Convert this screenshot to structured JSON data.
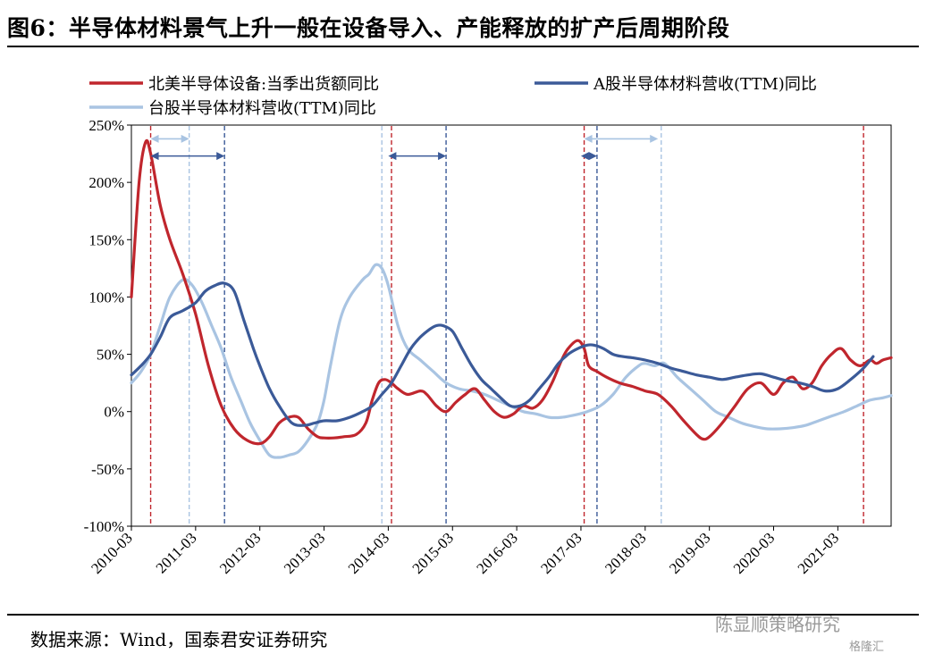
{
  "title": "图6：半导体材料景气上升一般在设备导入、产能释放的扩产后周期阶段",
  "source": "数据来源：Wind，国泰君安证券研究",
  "watermark": "陈显顺策略研究",
  "watermark_logo": "格隆汇",
  "colors": {
    "red": "#c0262d",
    "dark_blue": "#3b5a98",
    "light_blue": "#a9c4e2"
  },
  "chart_data": {
    "type": "line",
    "title": "",
    "xlabel": "",
    "ylabel": "",
    "ylim": [
      -100,
      250
    ],
    "y_ticks": [
      -100,
      -50,
      0,
      50,
      100,
      150,
      200,
      250
    ],
    "y_tick_labels": [
      "-100%",
      "-50%",
      "0%",
      "50%",
      "100%",
      "150%",
      "200%",
      "250%"
    ],
    "x_range": [
      2010.0,
      2021.83
    ],
    "x_ticks": [
      2010,
      2011,
      2012,
      2013,
      2014,
      2015,
      2016,
      2017,
      2018,
      2019,
      2020,
      2021
    ],
    "x_tick_labels": [
      "2010-03",
      "2011-03",
      "2012-03",
      "2013-03",
      "2014-03",
      "2015-03",
      "2016-03",
      "2017-03",
      "2018-03",
      "2019-03",
      "2020-03",
      "2021-03"
    ],
    "legend": [
      "北美半导体设备:当季出货额同比",
      "A股半导体材料营收(TTM)同比",
      "台股半导体材料营收(TTM)同比"
    ],
    "series": [
      {
        "name": "北美半导体设备:当季出货额同比",
        "color": "#c0262d",
        "x": [
          2010.0,
          2010.12,
          2010.22,
          2010.3,
          2010.45,
          2010.6,
          2010.8,
          2011.0,
          2011.2,
          2011.4,
          2011.6,
          2011.8,
          2012.0,
          2012.15,
          2012.3,
          2012.45,
          2012.6,
          2012.75,
          2012.9,
          2013.0,
          2013.15,
          2013.3,
          2013.5,
          2013.65,
          2013.75,
          2013.85,
          2013.95,
          2014.05,
          2014.15,
          2014.3,
          2014.5,
          2014.6,
          2014.75,
          2014.9,
          2015.05,
          2015.2,
          2015.35,
          2015.5,
          2015.65,
          2015.8,
          2015.95,
          2016.1,
          2016.25,
          2016.4,
          2016.55,
          2016.7,
          2016.8,
          2016.95,
          2017.05,
          2017.12,
          2017.25,
          2017.4,
          2017.6,
          2017.8,
          2018.0,
          2018.2,
          2018.4,
          2018.6,
          2018.8,
          2018.9,
          2019.0,
          2019.2,
          2019.4,
          2019.6,
          2019.8,
          2020.0,
          2020.15,
          2020.3,
          2020.45,
          2020.6,
          2020.75,
          2020.9,
          2021.05,
          2021.2,
          2021.35,
          2021.5,
          2021.6,
          2021.7,
          2021.83
        ],
        "y": [
          100,
          200,
          235,
          225,
          180,
          150,
          120,
          85,
          40,
          5,
          -15,
          -25,
          -28,
          -22,
          -10,
          -5,
          -5,
          -15,
          -22,
          -23,
          -23,
          -22,
          -20,
          -10,
          10,
          25,
          28,
          25,
          20,
          15,
          18,
          15,
          5,
          0,
          8,
          15,
          20,
          10,
          0,
          -5,
          -2,
          5,
          3,
          10,
          25,
          45,
          55,
          62,
          55,
          40,
          35,
          30,
          25,
          22,
          18,
          15,
          5,
          -8,
          -20,
          -24,
          -22,
          -10,
          5,
          20,
          25,
          15,
          25,
          30,
          20,
          25,
          40,
          50,
          55,
          45,
          40,
          45,
          42,
          45,
          47
        ]
      },
      {
        "name": "A股半导体材料营收(TTM)同比",
        "color": "#3b5a98",
        "x": [
          2010.0,
          2010.15,
          2010.3,
          2010.45,
          2010.6,
          2010.8,
          2011.0,
          2011.15,
          2011.3,
          2011.45,
          2011.6,
          2011.75,
          2011.9,
          2012.0,
          2012.15,
          2012.3,
          2012.5,
          2012.7,
          2012.85,
          2013.0,
          2013.2,
          2013.4,
          2013.6,
          2013.75,
          2013.9,
          2014.05,
          2014.2,
          2014.35,
          2014.5,
          2014.65,
          2014.75,
          2014.85,
          2015.0,
          2015.15,
          2015.3,
          2015.45,
          2015.6,
          2015.75,
          2015.9,
          2016.05,
          2016.2,
          2016.35,
          2016.5,
          2016.65,
          2016.8,
          2016.95,
          2017.1,
          2017.2,
          2017.35,
          2017.5,
          2017.65,
          2017.8,
          2018.0,
          2018.2,
          2018.4,
          2018.6,
          2018.8,
          2019.0,
          2019.2,
          2019.4,
          2019.6,
          2019.8,
          2020.0,
          2020.2,
          2020.4,
          2020.6,
          2020.8,
          2021.0,
          2021.2,
          2021.4,
          2021.55
        ],
        "y": [
          32,
          40,
          50,
          65,
          82,
          88,
          95,
          105,
          110,
          112,
          105,
          80,
          55,
          40,
          20,
          5,
          -10,
          -12,
          -10,
          -8,
          -8,
          -5,
          0,
          5,
          15,
          25,
          40,
          55,
          65,
          72,
          75,
          75,
          70,
          55,
          40,
          28,
          20,
          12,
          5,
          5,
          10,
          20,
          30,
          42,
          50,
          55,
          58,
          58,
          55,
          50,
          48,
          47,
          45,
          42,
          38,
          35,
          32,
          30,
          28,
          30,
          32,
          33,
          30,
          27,
          25,
          22,
          18,
          20,
          28,
          38,
          48
        ]
      },
      {
        "name": "台股半导体材料营收(TTM)同比",
        "color": "#a9c4e2",
        "x": [
          2010.0,
          2010.15,
          2010.3,
          2010.45,
          2010.6,
          2010.8,
          2010.95,
          2011.1,
          2011.25,
          2011.4,
          2011.55,
          2011.7,
          2011.85,
          2012.0,
          2012.15,
          2012.3,
          2012.45,
          2012.6,
          2012.75,
          2012.9,
          2013.0,
          2013.1,
          2013.25,
          2013.4,
          2013.6,
          2013.7,
          2013.8,
          2013.9,
          2014.0,
          2014.15,
          2014.3,
          2014.5,
          2014.7,
          2014.9,
          2015.1,
          2015.3,
          2015.5,
          2015.7,
          2015.9,
          2016.1,
          2016.3,
          2016.5,
          2016.7,
          2016.9,
          2017.1,
          2017.3,
          2017.5,
          2017.7,
          2017.9,
          2018.0,
          2018.15,
          2018.3,
          2018.5,
          2018.7,
          2018.9,
          2019.1,
          2019.3,
          2019.5,
          2019.7,
          2019.9,
          2020.1,
          2020.3,
          2020.5,
          2020.7,
          2020.9,
          2021.1,
          2021.3,
          2021.5,
          2021.7,
          2021.83
        ],
        "y": [
          25,
          35,
          50,
          75,
          100,
          115,
          110,
          95,
          75,
          55,
          30,
          10,
          -10,
          -25,
          -38,
          -40,
          -38,
          -35,
          -25,
          -10,
          10,
          40,
          80,
          100,
          115,
          120,
          128,
          125,
          110,
          75,
          55,
          45,
          35,
          25,
          20,
          18,
          15,
          10,
          5,
          0,
          -2,
          -5,
          -5,
          -3,
          0,
          5,
          15,
          30,
          40,
          42,
          40,
          42,
          30,
          20,
          10,
          0,
          -5,
          -10,
          -13,
          -15,
          -15,
          -14,
          -12,
          -8,
          -4,
          0,
          5,
          10,
          12,
          14
        ]
      }
    ],
    "red_vlines": [
      2010.3,
      2014.05,
      2017.05,
      2021.4
    ],
    "dark_vlines": [
      2011.45,
      2014.9,
      2017.25
    ],
    "light_vlines": [
      2010.9,
      2013.9,
      2018.25
    ],
    "arrows": [
      {
        "from": 2010.3,
        "to": 2010.9,
        "y": 238,
        "color": "#a9c4e2"
      },
      {
        "from": 2010.3,
        "to": 2011.45,
        "y": 223,
        "color": "#3b5a98"
      },
      {
        "from": 2014.0,
        "to": 2014.9,
        "y": 223,
        "color": "#3b5a98"
      },
      {
        "from": 2017.0,
        "to": 2017.25,
        "y": 223,
        "color": "#3b5a98"
      },
      {
        "from": 2017.05,
        "to": 2018.2,
        "y": 238,
        "color": "#a9c4e2"
      }
    ]
  }
}
